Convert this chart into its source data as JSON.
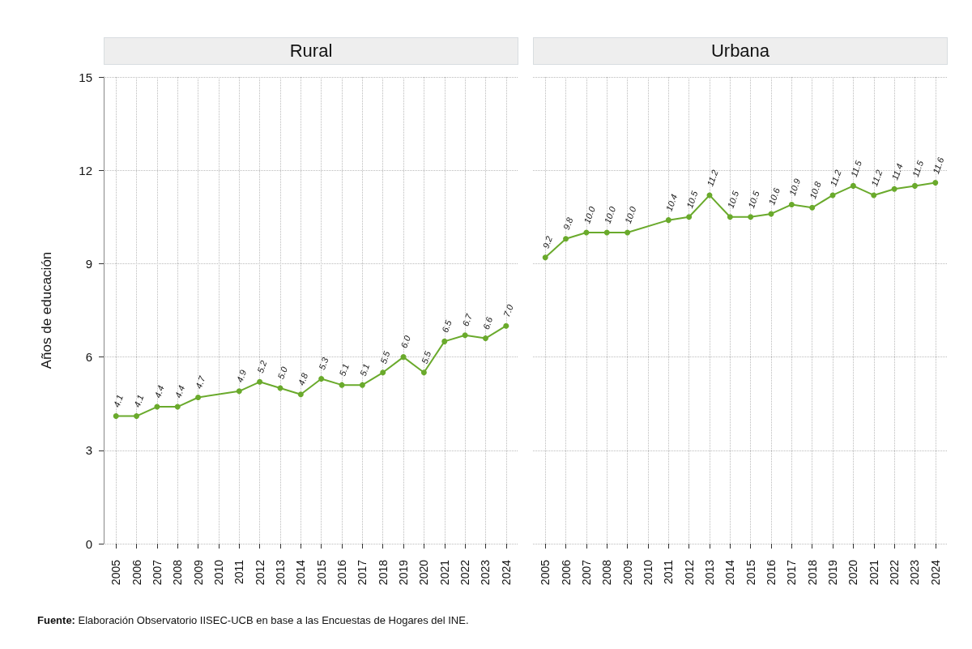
{
  "chart_data": [
    {
      "type": "line",
      "title": "Rural",
      "ylabel": "Años de educación",
      "x": [
        2005,
        2006,
        2007,
        2008,
        2009,
        2011,
        2012,
        2013,
        2014,
        2015,
        2016,
        2017,
        2018,
        2019,
        2020,
        2021,
        2022,
        2023,
        2024
      ],
      "series": [
        {
          "color": "#6aaa2c",
          "values": [
            4.1,
            4.1,
            4.4,
            4.4,
            4.7,
            4.9,
            5.2,
            5.0,
            4.8,
            5.3,
            5.1,
            5.1,
            5.5,
            6.0,
            5.5,
            6.5,
            6.7,
            6.6,
            7.0
          ],
          "value_labels": [
            "4.1",
            "4.1",
            "4.4",
            "4.4",
            "4.7",
            "4.9",
            "5.2",
            "5.0",
            "4.8",
            "5.3",
            "5.1",
            "5.1",
            "5.5",
            "6.0",
            "5.5",
            "6.5",
            "6.7",
            "6.6",
            "7.0"
          ]
        }
      ],
      "xlim": [
        2004.4,
        2024.6
      ],
      "xticks": [
        2005,
        2006,
        2007,
        2008,
        2009,
        2010,
        2011,
        2012,
        2013,
        2014,
        2015,
        2016,
        2017,
        2018,
        2019,
        2020,
        2021,
        2022,
        2023,
        2024
      ],
      "ylim": [
        0,
        15
      ],
      "yticks": [
        0,
        3,
        6,
        9,
        12,
        15
      ],
      "grid": true,
      "marker": "circle",
      "line_style": "solid",
      "annotations": [
        "Fuente: Elaboración Observatorio IISEC-UCB en base a las Encuestas de Hogares del INE."
      ]
    },
    {
      "type": "line",
      "title": "Urbana",
      "x": [
        2005,
        2006,
        2007,
        2008,
        2009,
        2011,
        2012,
        2013,
        2014,
        2015,
        2016,
        2017,
        2018,
        2019,
        2020,
        2021,
        2022,
        2023,
        2024
      ],
      "series": [
        {
          "color": "#6aaa2c",
          "values": [
            9.2,
            9.8,
            10.0,
            10.0,
            10.0,
            10.4,
            10.5,
            11.2,
            10.5,
            10.5,
            10.6,
            10.9,
            10.8,
            11.2,
            11.5,
            11.2,
            11.4,
            11.5,
            11.6
          ],
          "value_labels": [
            "9.2",
            "9.8",
            "10.0",
            "10.0",
            "10.0",
            "10.4",
            "10.5",
            "11.2",
            "10.5",
            "10.5",
            "10.6",
            "10.9",
            "10.8",
            "11.2",
            "11.5",
            "11.2",
            "11.4",
            "11.5",
            "11.6"
          ]
        }
      ],
      "xlim": [
        2004.4,
        2024.6
      ],
      "xticks": [
        2005,
        2006,
        2007,
        2008,
        2009,
        2010,
        2011,
        2012,
        2013,
        2014,
        2015,
        2016,
        2017,
        2018,
        2019,
        2020,
        2021,
        2022,
        2023,
        2024
      ],
      "ylim": [
        0,
        15
      ],
      "yticks": [
        0,
        3,
        6,
        9,
        12,
        15
      ],
      "grid": true,
      "marker": "circle",
      "line_style": "solid",
      "tick_labels": "x"
    }
  ]
}
